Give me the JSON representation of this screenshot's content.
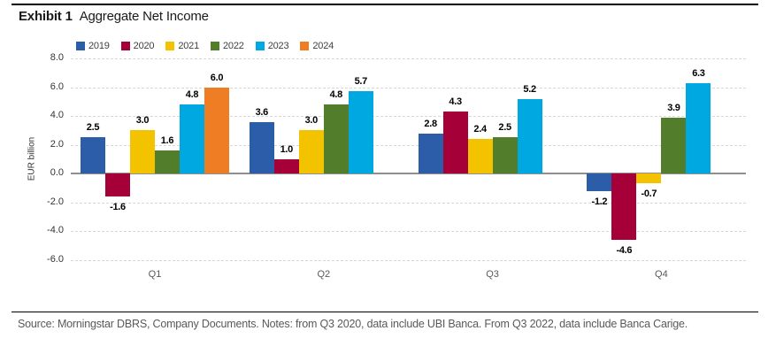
{
  "chart_data": {
    "type": "bar",
    "title_prefix": "Exhibit 1",
    "title": "Aggregate Net Income",
    "ylabel": "EUR billion",
    "categories": [
      "Q1",
      "Q2",
      "Q3",
      "Q4"
    ],
    "series": [
      {
        "name": "2019",
        "color": "#2b5da9",
        "values": [
          2.5,
          3.6,
          2.8,
          -1.2
        ]
      },
      {
        "name": "2020",
        "color": "#a50038",
        "values": [
          -1.6,
          1.0,
          4.3,
          -4.6
        ]
      },
      {
        "name": "2021",
        "color": "#f3c300",
        "values": [
          3.0,
          3.0,
          2.4,
          -0.7
        ]
      },
      {
        "name": "2022",
        "color": "#527e2b",
        "values": [
          1.6,
          4.8,
          2.5,
          3.9
        ]
      },
      {
        "name": "2023",
        "color": "#00a8e2",
        "values": [
          4.8,
          5.7,
          5.2,
          6.3
        ]
      },
      {
        "name": "2024",
        "color": "#ef7d24",
        "values": [
          6.0,
          null,
          null,
          null
        ]
      }
    ],
    "y_ticks": [
      "8.0",
      "6.0",
      "4.0",
      "2.0",
      "0.0",
      "-2.0",
      "-4.0",
      "-6.0"
    ],
    "ylim": [
      -6,
      8
    ],
    "grid": "horizontal-dashed",
    "legend_position": "top-left"
  },
  "source": "Source: Morningstar DBRS, Company Documents. Notes: from Q3 2020, data include UBI Banca. From Q3 2022, data include Banca Carige."
}
